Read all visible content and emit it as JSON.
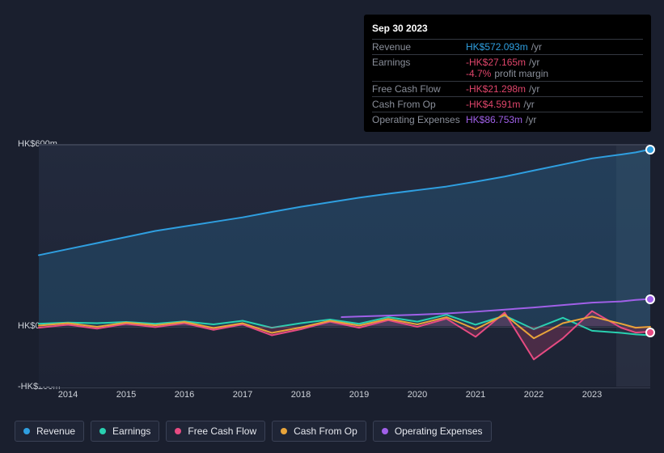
{
  "tooltip": {
    "date": "Sep 30 2023",
    "rows": [
      {
        "label": "Revenue",
        "value": "HK$572.093m",
        "unit": "/yr",
        "color": "#2f9fe0"
      },
      {
        "label": "Earnings",
        "value": "-HK$27.165m",
        "unit": "/yr",
        "color": "#e0456b",
        "sub_value": "-4.7%",
        "sub_label": "profit margin",
        "sub_color": "#e0456b"
      },
      {
        "label": "Free Cash Flow",
        "value": "-HK$21.298m",
        "unit": "/yr",
        "color": "#e0456b"
      },
      {
        "label": "Cash From Op",
        "value": "-HK$4.591m",
        "unit": "/yr",
        "color": "#e0456b"
      },
      {
        "label": "Operating Expenses",
        "value": "HK$86.753m",
        "unit": "/yr",
        "color": "#a060e8"
      }
    ]
  },
  "chart": {
    "type": "line",
    "background_color": "#1a1f2e",
    "plot_background": "#222a3d",
    "grid_color": "#3a4052",
    "text_color": "#cfd3da",
    "y": {
      "min": -200,
      "max": 600,
      "ticks": [
        {
          "v": 600,
          "label": "HK$600m"
        },
        {
          "v": 0,
          "label": "HK$0"
        },
        {
          "v": -200,
          "label": "-HK$200m"
        }
      ]
    },
    "x": {
      "min": 2013.5,
      "max": 2024.0,
      "ticks": [
        2014,
        2015,
        2016,
        2017,
        2018,
        2019,
        2020,
        2021,
        2022,
        2023
      ],
      "future_from": 2023.42
    },
    "series": [
      {
        "key": "revenue",
        "label": "Revenue",
        "color": "#2f9fe0",
        "fill": "rgba(47,159,224,0.18)",
        "fill_to": 0,
        "width": 2,
        "data": [
          [
            2013.5,
            235
          ],
          [
            2014,
            255
          ],
          [
            2014.5,
            275
          ],
          [
            2015,
            295
          ],
          [
            2015.5,
            315
          ],
          [
            2016,
            330
          ],
          [
            2016.5,
            345
          ],
          [
            2017,
            360
          ],
          [
            2017.5,
            378
          ],
          [
            2018,
            395
          ],
          [
            2018.5,
            410
          ],
          [
            2019,
            425
          ],
          [
            2019.5,
            438
          ],
          [
            2020,
            450
          ],
          [
            2020.5,
            462
          ],
          [
            2021,
            478
          ],
          [
            2021.5,
            495
          ],
          [
            2022,
            515
          ],
          [
            2022.5,
            535
          ],
          [
            2023,
            555
          ],
          [
            2023.5,
            568
          ],
          [
            2023.75,
            575
          ],
          [
            2024,
            585
          ]
        ],
        "marker_x": 2024.0
      },
      {
        "key": "earnings",
        "label": "Earnings",
        "color": "#29d0b0",
        "width": 2,
        "data": [
          [
            2013.5,
            8
          ],
          [
            2014,
            12
          ],
          [
            2014.5,
            10
          ],
          [
            2015,
            14
          ],
          [
            2015.5,
            8
          ],
          [
            2016,
            16
          ],
          [
            2016.5,
            6
          ],
          [
            2017,
            18
          ],
          [
            2017.5,
            -5
          ],
          [
            2018,
            10
          ],
          [
            2018.5,
            22
          ],
          [
            2019,
            8
          ],
          [
            2019.5,
            30
          ],
          [
            2020,
            15
          ],
          [
            2020.5,
            38
          ],
          [
            2021,
            5
          ],
          [
            2021.5,
            35
          ],
          [
            2022,
            -10
          ],
          [
            2022.5,
            28
          ],
          [
            2023,
            -15
          ],
          [
            2023.5,
            -22
          ],
          [
            2023.75,
            -27
          ],
          [
            2024,
            -30
          ]
        ]
      },
      {
        "key": "fcf",
        "label": "Free Cash Flow",
        "color": "#e74b82",
        "fill": "rgba(231,75,130,0.22)",
        "fill_to": 0,
        "width": 2,
        "data": [
          [
            2013.5,
            -5
          ],
          [
            2014,
            5
          ],
          [
            2014.5,
            -8
          ],
          [
            2015,
            8
          ],
          [
            2015.5,
            -3
          ],
          [
            2016,
            10
          ],
          [
            2016.5,
            -12
          ],
          [
            2017,
            6
          ],
          [
            2017.5,
            -30
          ],
          [
            2018,
            -10
          ],
          [
            2018.5,
            15
          ],
          [
            2019,
            -5
          ],
          [
            2019.5,
            20
          ],
          [
            2020,
            -2
          ],
          [
            2020.5,
            25
          ],
          [
            2021,
            -35
          ],
          [
            2021.5,
            45
          ],
          [
            2022,
            -110
          ],
          [
            2022.5,
            -40
          ],
          [
            2023,
            50
          ],
          [
            2023.5,
            -5
          ],
          [
            2023.75,
            -21
          ],
          [
            2024,
            -18
          ]
        ],
        "marker_x": 2024.0
      },
      {
        "key": "cfo",
        "label": "Cash From Op",
        "color": "#e8a43a",
        "width": 2,
        "data": [
          [
            2013.5,
            2
          ],
          [
            2014,
            10
          ],
          [
            2014.5,
            -2
          ],
          [
            2015,
            12
          ],
          [
            2015.5,
            3
          ],
          [
            2016,
            14
          ],
          [
            2016.5,
            -6
          ],
          [
            2017,
            10
          ],
          [
            2017.5,
            -22
          ],
          [
            2018,
            -4
          ],
          [
            2018.5,
            18
          ],
          [
            2019,
            2
          ],
          [
            2019.5,
            24
          ],
          [
            2020,
            6
          ],
          [
            2020.5,
            30
          ],
          [
            2021,
            -10
          ],
          [
            2021.5,
            38
          ],
          [
            2022,
            -40
          ],
          [
            2022.5,
            10
          ],
          [
            2023,
            32
          ],
          [
            2023.5,
            8
          ],
          [
            2023.75,
            -5
          ],
          [
            2024,
            -2
          ]
        ]
      },
      {
        "key": "opex",
        "label": "Operating Expenses",
        "color": "#a060e8",
        "width": 2,
        "data": [
          [
            2018.7,
            30
          ],
          [
            2019,
            32
          ],
          [
            2019.5,
            35
          ],
          [
            2020,
            38
          ],
          [
            2020.5,
            42
          ],
          [
            2021,
            48
          ],
          [
            2021.5,
            55
          ],
          [
            2022,
            62
          ],
          [
            2022.5,
            70
          ],
          [
            2023,
            78
          ],
          [
            2023.5,
            82
          ],
          [
            2023.75,
            87
          ],
          [
            2024,
            90
          ]
        ],
        "marker_x": 2024.0
      }
    ]
  },
  "legend": [
    {
      "key": "revenue",
      "label": "Revenue",
      "color": "#2f9fe0"
    },
    {
      "key": "earnings",
      "label": "Earnings",
      "color": "#29d0b0"
    },
    {
      "key": "fcf",
      "label": "Free Cash Flow",
      "color": "#e74b82"
    },
    {
      "key": "cfo",
      "label": "Cash From Op",
      "color": "#e8a43a"
    },
    {
      "key": "opex",
      "label": "Operating Expenses",
      "color": "#a060e8"
    }
  ]
}
